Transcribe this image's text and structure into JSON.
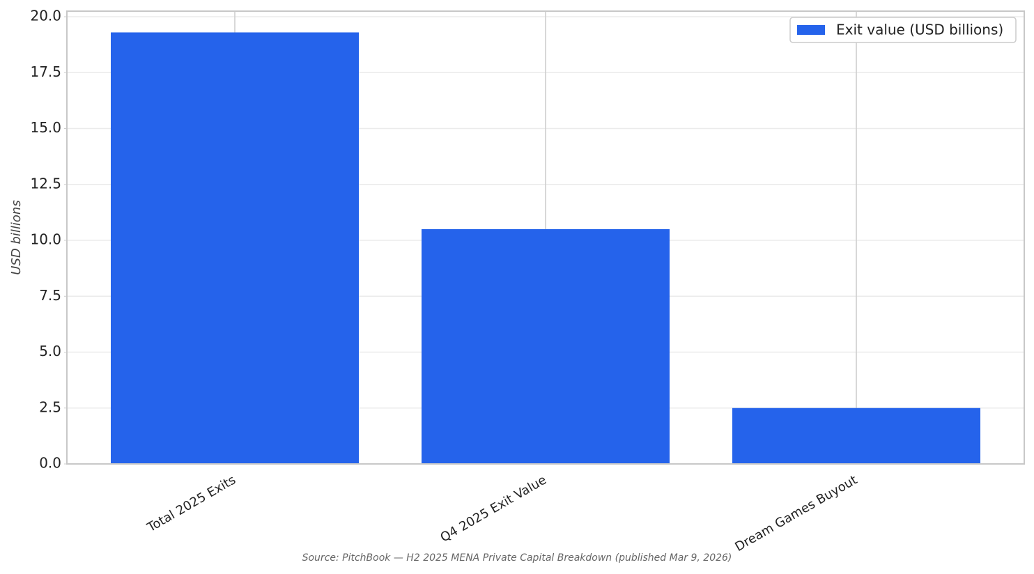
{
  "chart_data": {
    "type": "bar",
    "ylabel": "USD billions",
    "source": "Source: PitchBook — H2 2025 MENA Private Capital Breakdown (published Mar 9, 2026)",
    "categories": [
      "Total 2025 Exits",
      "Q4 2025 Exit Value",
      "Dream Games Buyout"
    ],
    "series": [
      {
        "name": "Exit value (USD billions)",
        "color": "#2563eb",
        "values": [
          19.3,
          10.5,
          2.5
        ]
      }
    ],
    "ylim": [
      0,
      20.25
    ],
    "yticks": [
      {
        "value": 0,
        "label": "0.0"
      },
      2.5,
      {
        "value": 5,
        "label": "5.0"
      },
      7.5,
      {
        "value": 10,
        "label": "10.0"
      },
      12.5,
      {
        "value": 15,
        "label": "15.0"
      },
      17.5,
      {
        "value": 20,
        "label": "20.0"
      }
    ],
    "grid": true,
    "legend": "upper right"
  }
}
